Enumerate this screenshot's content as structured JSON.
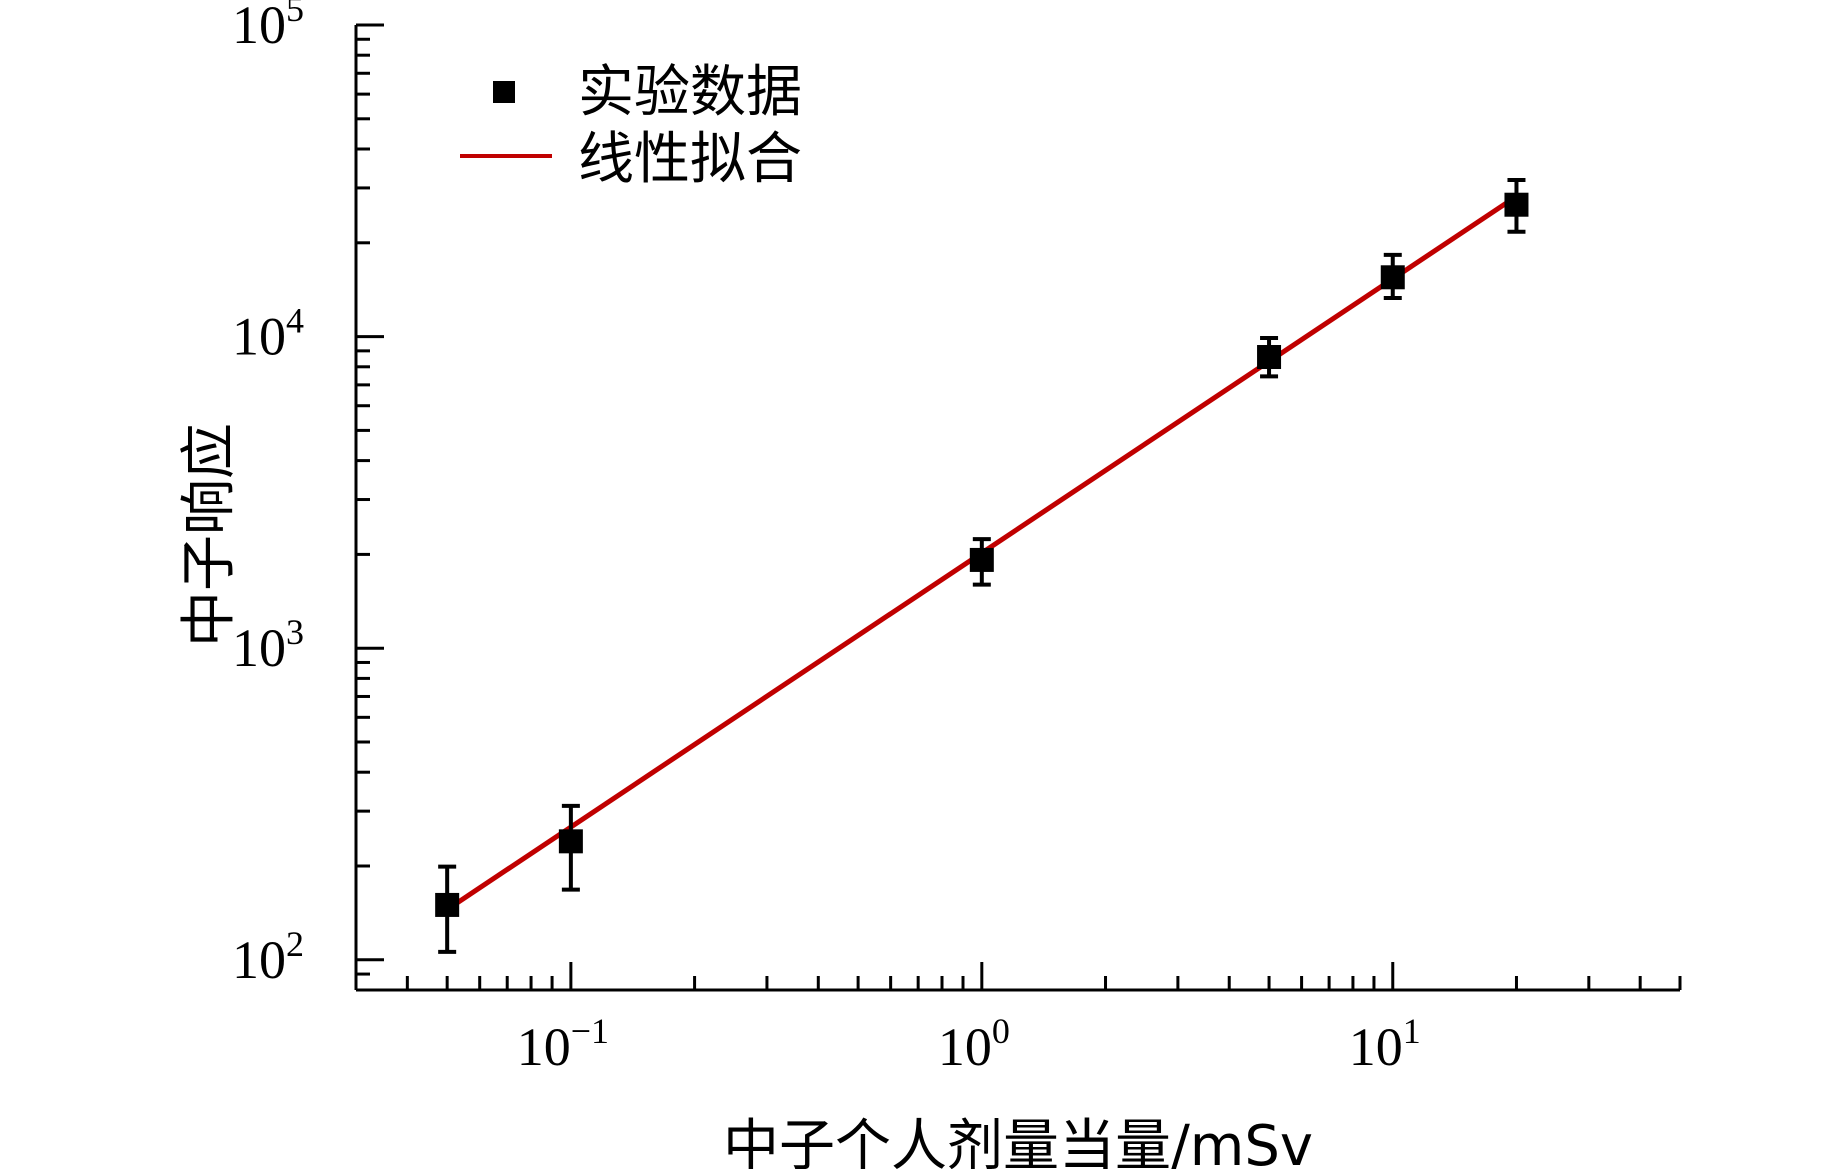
{
  "chart_data": {
    "type": "scatter",
    "xlabel": "中子个人剂量当量/mSv",
    "ylabel": "中子响应",
    "xscale": "log",
    "yscale": "log",
    "xlim": [
      0.03,
      50
    ],
    "ylim": [
      80,
      100000
    ],
    "x_ticks": [
      {
        "base": "10",
        "exp": "−1",
        "value": 0.1
      },
      {
        "base": "10",
        "exp": "0",
        "value": 1
      },
      {
        "base": "10",
        "exp": "1",
        "value": 10
      }
    ],
    "y_ticks": [
      {
        "base": "10",
        "exp": "2",
        "value": 100
      },
      {
        "base": "10",
        "exp": "3",
        "value": 1000
      },
      {
        "base": "10",
        "exp": "4",
        "value": 10000
      },
      {
        "base": "10",
        "exp": "5",
        "value": 100000
      }
    ],
    "grid": false,
    "legend_position": "top-left",
    "series": [
      {
        "name": "实验数据",
        "kind": "scatter",
        "marker": "square",
        "color": "#000000",
        "points": [
          {
            "x": 0.05,
            "y": 150,
            "y_low": 106,
            "y_high": 199
          },
          {
            "x": 0.1,
            "y": 240,
            "y_low": 168,
            "y_high": 312
          },
          {
            "x": 1,
            "y": 1920,
            "y_low": 1600,
            "y_high": 2240
          },
          {
            "x": 5,
            "y": 8600,
            "y_low": 7450,
            "y_high": 9900
          },
          {
            "x": 10,
            "y": 15500,
            "y_low": 13300,
            "y_high": 18300
          },
          {
            "x": 20,
            "y": 26500,
            "y_low": 21700,
            "y_high": 31800
          }
        ]
      },
      {
        "name": "线性拟合",
        "kind": "line",
        "color": "#c00000",
        "x": [
          0.05,
          20
        ],
        "y": [
          145,
          28200
        ]
      }
    ]
  }
}
